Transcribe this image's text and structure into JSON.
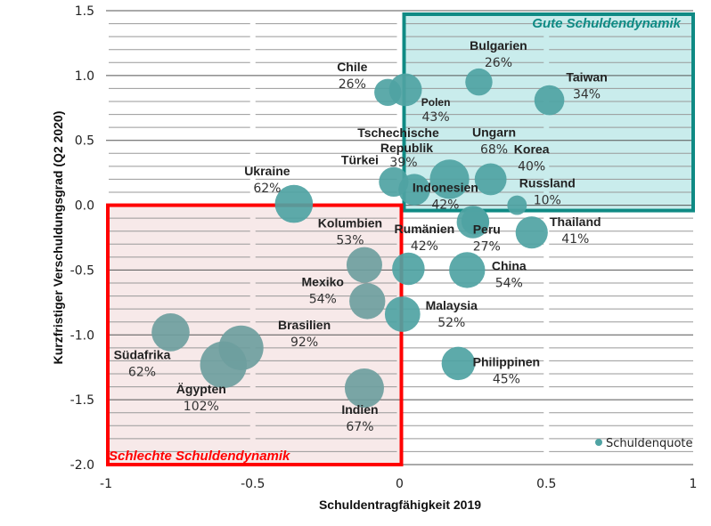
{
  "chart_data": {
    "type": "scatter",
    "subtype": "bubble",
    "title": "",
    "xlabel": "Schuldentragfähigkeit 2019",
    "ylabel": "Kurzfristiger Verschuldungsgrad (Q2 2020)",
    "xlim": [
      -1,
      1
    ],
    "ylim": [
      -2.0,
      1.5
    ],
    "xticks": [
      "-1",
      "-0.5",
      "0",
      "0.5",
      "1"
    ],
    "xtick_values": [
      -1,
      -0.5,
      0,
      0.5,
      1
    ],
    "yticks": [
      "1.5",
      "1.0",
      "0.5",
      "0.0",
      "-0.5",
      "-1.0",
      "-1.5",
      "-2.0"
    ],
    "ytick_values": [
      1.5,
      1.0,
      0.5,
      0.0,
      -0.5,
      -1.0,
      -1.5,
      -2.0
    ],
    "grid": true,
    "legend": {
      "label": "Schuldenquote",
      "placement": "bottom-right"
    },
    "bubble_size_measure": "Schuldenquote (%)",
    "colors": {
      "bubble": "#4fa3a3",
      "bubble_bad": "#6e9e9e",
      "good_zone_fill": "#c9ecec",
      "good_zone_border": "#0f8a84",
      "bad_zone_fill": "#f7e9e9",
      "bad_zone_border": "#ff0000",
      "good_label": "#0f8a84",
      "bad_label": "#ff0000"
    },
    "zones": [
      {
        "label": "Gute Schuldendynamik",
        "x_range": [
          0,
          1
        ],
        "y_range": [
          0,
          1.5
        ]
      },
      {
        "label": "Schlechte Schuldendynamik",
        "x_range": [
          -1,
          0
        ],
        "y_range": [
          -2.0,
          0
        ]
      }
    ],
    "points": [
      {
        "name": "Chile",
        "x": -0.04,
        "y": 0.87,
        "size": 26,
        "label": "26%"
      },
      {
        "name": "Polen",
        "x": 0.02,
        "y": 0.89,
        "size": 43,
        "label": "43%"
      },
      {
        "name": "Bulgarien",
        "x": 0.27,
        "y": 0.95,
        "size": 26,
        "label": "26%"
      },
      {
        "name": "Taiwan",
        "x": 0.51,
        "y": 0.81,
        "size": 34,
        "label": "34%"
      },
      {
        "name": "Türkei",
        "x": -0.02,
        "y": 0.18,
        "size": 33,
        "label": ""
      },
      {
        "name": "Tschechische Republik",
        "x": 0.05,
        "y": 0.12,
        "size": 39,
        "label": "39%"
      },
      {
        "name": "Ungarn",
        "x": 0.17,
        "y": 0.2,
        "size": 68,
        "label": "68%"
      },
      {
        "name": "Korea",
        "x": 0.31,
        "y": 0.2,
        "size": 40,
        "label": "40%"
      },
      {
        "name": "Russland",
        "x": 0.4,
        "y": 0.0,
        "size": 10,
        "label": "10%"
      },
      {
        "name": "Indonesien",
        "x": 0.25,
        "y": -0.13,
        "size": 42,
        "label": "42%"
      },
      {
        "name": "Thailand",
        "x": 0.45,
        "y": -0.21,
        "size": 41,
        "label": "41%"
      },
      {
        "name": "Ukraine",
        "x": -0.36,
        "y": 0.01,
        "size": 62,
        "label": "62%"
      },
      {
        "name": "Kolumbien",
        "x": -0.12,
        "y": -0.46,
        "size": 53,
        "label": "53%"
      },
      {
        "name": "Rumänien",
        "x": 0.03,
        "y": -0.49,
        "size": 42,
        "label": "42%"
      },
      {
        "name": "Peru",
        "x": 0.23,
        "y": -0.5,
        "size": 27,
        "label": "27%"
      },
      {
        "name": "China",
        "x": 0.23,
        "y": -0.5,
        "size": 54,
        "label": "54%"
      },
      {
        "name": "Mexiko",
        "x": -0.11,
        "y": -0.74,
        "size": 54,
        "label": "54%"
      },
      {
        "name": "Malaysia",
        "x": 0.01,
        "y": -0.84,
        "size": 52,
        "label": "52%"
      },
      {
        "name": "Philippinen",
        "x": 0.2,
        "y": -1.22,
        "size": 45,
        "label": "45%"
      },
      {
        "name": "Indien",
        "x": -0.12,
        "y": -1.41,
        "size": 67,
        "label": "67%"
      },
      {
        "name": "Südafrika",
        "x": -0.78,
        "y": -0.98,
        "size": 62,
        "label": "62%"
      },
      {
        "name": "Brasilien",
        "x": -0.54,
        "y": -1.1,
        "size": 92,
        "label": "92%"
      },
      {
        "name": "Ägypten",
        "x": -0.6,
        "y": -1.23,
        "size": 102,
        "label": "102%"
      }
    ]
  }
}
